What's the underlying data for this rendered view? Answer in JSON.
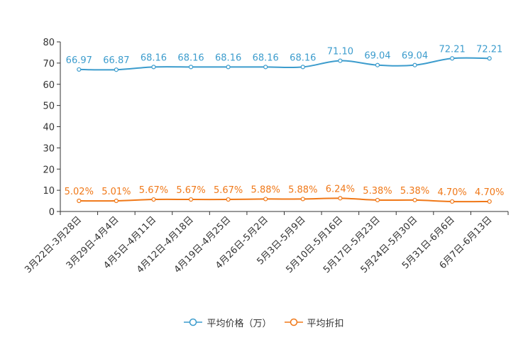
{
  "chart_data": {
    "type": "line",
    "categories": [
      "3月22日-3月28日",
      "3月29日-4月4日",
      "4月5日-4月11日",
      "4月12日-4月18日",
      "4月19日-4月25日",
      "4月26日-5月2日",
      "5月3日-5月9日",
      "5月10日-5月16日",
      "5月17日-5月23日",
      "5月24日-5月30日",
      "5月31日-6月6日",
      "6月7日-6月13日"
    ],
    "series": [
      {
        "name": "平均价格（万）",
        "color": "#3c9ccd",
        "values": [
          66.97,
          66.87,
          68.16,
          68.16,
          68.16,
          68.16,
          68.16,
          71.1,
          69.04,
          69.04,
          72.21,
          72.21
        ],
        "labels": [
          "66.97",
          "66.87",
          "68.16",
          "68.16",
          "68.16",
          "68.16",
          "68.16",
          "71.10",
          "69.04",
          "69.04",
          "72.21",
          "72.21"
        ]
      },
      {
        "name": "平均折扣",
        "color": "#f07818",
        "values": [
          5.02,
          5.01,
          5.67,
          5.67,
          5.67,
          5.88,
          5.88,
          6.24,
          5.38,
          5.38,
          4.7,
          4.7
        ],
        "labels": [
          "5.02%",
          "5.01%",
          "5.67%",
          "5.67%",
          "5.67%",
          "5.88%",
          "5.88%",
          "6.24%",
          "5.38%",
          "5.38%",
          "4.70%",
          "4.70%"
        ]
      }
    ],
    "yticks": [
      "0",
      "10",
      "20",
      "30",
      "40",
      "50",
      "60",
      "70",
      "80"
    ],
    "ylim": [
      0,
      80
    ],
    "title": "",
    "xlabel": "",
    "ylabel": "",
    "legend_position": "bottom-center"
  }
}
